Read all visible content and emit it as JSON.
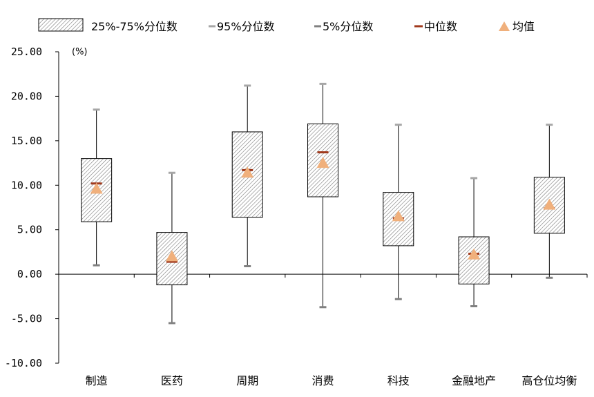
{
  "chart_data": {
    "type": "box",
    "ylabel": "(%)",
    "ylim": [
      -10,
      25
    ],
    "yticks": [
      "25.00",
      "20.00",
      "15.00",
      "10.00",
      "5.00",
      "0.00",
      "-5.00",
      "-10.00"
    ],
    "categories": [
      "制造",
      "医药",
      "周期",
      "消费",
      "科技",
      "金融地产",
      "高仓位均衡"
    ],
    "legend": {
      "iqr": "25%-75%分位数",
      "p95": "95%分位数",
      "p5": "5%分位数",
      "median": "中位数",
      "mean": "均值"
    },
    "series": [
      {
        "name": "95%分位数",
        "values": [
          18.5,
          11.4,
          21.2,
          21.4,
          16.8,
          10.8,
          16.8
        ]
      },
      {
        "name": "75%分位数",
        "values": [
          13.0,
          4.7,
          16.0,
          16.9,
          9.2,
          4.2,
          10.9
        ]
      },
      {
        "name": "中位数",
        "values": [
          10.2,
          1.4,
          11.7,
          13.7,
          6.3,
          2.3,
          7.4
        ]
      },
      {
        "name": "均值",
        "values": [
          9.6,
          2.0,
          11.4,
          12.5,
          6.5,
          2.2,
          7.8
        ]
      },
      {
        "name": "25%分位数",
        "values": [
          5.9,
          -1.2,
          6.4,
          8.7,
          3.2,
          -1.1,
          4.6
        ]
      },
      {
        "name": "5%分位数",
        "values": [
          1.0,
          -5.5,
          0.9,
          -3.7,
          -2.8,
          -3.6,
          -0.4
        ]
      }
    ],
    "colors": {
      "median": "#a0391c",
      "mean": "#f0b07c",
      "whisker": "#000000",
      "p95_marker": "#a6a6a6",
      "p5_marker": "#808080",
      "box_stroke": "#000000",
      "hatch": "#7a7a7a"
    },
    "grid": false,
    "legend_position": "top"
  }
}
